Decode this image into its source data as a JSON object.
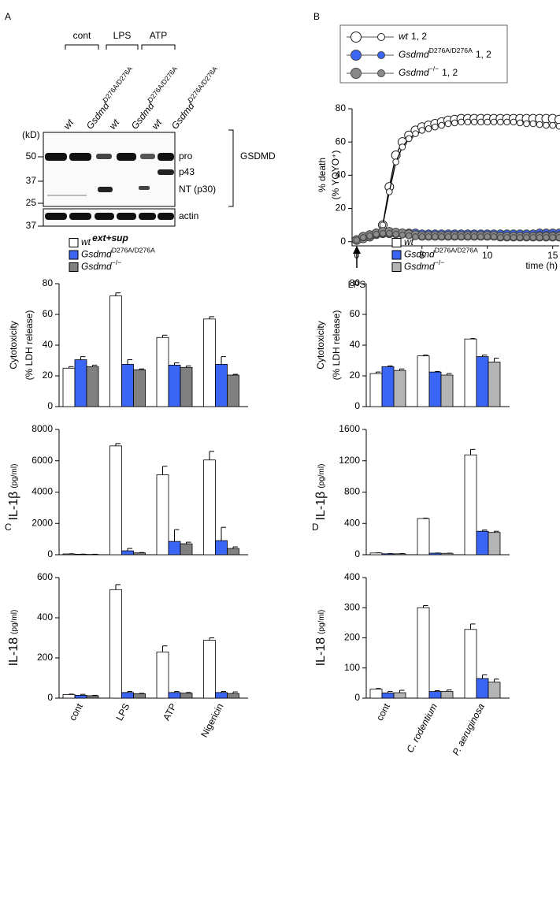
{
  "panel_labels": [
    "A",
    "B",
    "C",
    "D"
  ],
  "blot": {
    "groups": [
      "cont",
      "LPS",
      "ATP"
    ],
    "lanes": [
      {
        "name": "wt"
      },
      {
        "name": "Gsdmd",
        "sup": "D276A/D276A"
      },
      {
        "name": "wt"
      },
      {
        "name": "Gsdmd",
        "sup": "D276A/D276A"
      },
      {
        "name": "wt"
      },
      {
        "name": "Gsdmd",
        "sup": "D276A/D276A"
      }
    ],
    "unit": "(kD)",
    "markers": [
      50,
      37,
      25
    ],
    "loading_markers": [
      37
    ],
    "bands": [
      "pro",
      "p43",
      "NT (p30)"
    ],
    "protein": "GSDMD",
    "loading_control": "actin",
    "caption": "ext+sup"
  },
  "chart_data": [
    {
      "type": "line",
      "ylabel": "% death",
      "ylabel_unit": "(% YOYO⁺)",
      "xlabel": "time (h)",
      "annotation": "LPS",
      "xlim": [
        -0.35,
        15.5
      ],
      "xticks": [
        0,
        5,
        10,
        15
      ],
      "ylim": [
        -2.5,
        80
      ],
      "yticks": [
        0,
        20,
        40,
        60,
        80
      ],
      "x": [
        0,
        0.5,
        1,
        1.5,
        2,
        2.5,
        3,
        3.5,
        4,
        4.5,
        5,
        5.5,
        6,
        6.5,
        7,
        7.5,
        8,
        8.5,
        9,
        9.5,
        10,
        10.5,
        11,
        11.5,
        12,
        12.5,
        13,
        13.5,
        14,
        14.5,
        15,
        15.5
      ],
      "series": [
        {
          "name": "wt",
          "suffix": "1, 2",
          "color": "#ffffff",
          "replicates": [
            [
              1,
              2,
              3,
              5,
              10,
              33,
              52,
              60,
              64,
              67,
              69,
              70,
              71,
              72,
              73,
              73.5,
              74,
              74,
              74,
              74,
              74,
              74,
              74,
              74,
              74,
              74,
              74,
              74,
              74,
              74,
              74,
              73.5
            ],
            [
              1,
              2,
              3,
              5,
              10,
              30,
              48,
              57,
              62,
              65,
              67,
              68,
              69,
              70,
              71,
              71.5,
              72,
              72,
              72,
              72,
              72,
              72,
              72,
              72,
              72,
              71.5,
              71,
              71,
              70.5,
              70,
              70,
              69.5
            ]
          ]
        },
        {
          "name": "Gsdmd",
          "sup": "D276A/D276A",
          "suffix": "1, 2",
          "color": "#3b66f5",
          "replicates": [
            [
              1,
              3,
              4,
              4.5,
              5,
              5,
              5,
              5,
              5,
              5,
              4.5,
              4.5,
              4.5,
              4.5,
              4.5,
              4.5,
              4.5,
              4.5,
              4.5,
              4.5,
              4.5,
              4.5,
              4.5,
              4.5,
              4.5,
              4.5,
              4.5,
              4.5,
              5,
              5,
              5,
              5
            ],
            [
              1,
              2.5,
              3.5,
              4,
              4.5,
              4.5,
              4.5,
              4,
              4,
              4,
              4,
              4,
              4,
              4,
              4,
              4,
              4,
              4,
              4,
              4,
              4,
              4,
              4,
              4,
              4,
              4,
              4,
              4,
              4.5,
              4.5,
              4.5,
              4.5
            ]
          ]
        },
        {
          "name": "Gsdmd",
          "sup": "−/−",
          "suffix": "1, 2",
          "color": "#8a8a8a",
          "replicates": [
            [
              1,
              3,
              4,
              5,
              6,
              6,
              5.5,
              5,
              4.5,
              4,
              3.5,
              3.5,
              3.5,
              3.5,
              3.5,
              3.5,
              3.5,
              3.5,
              3.5,
              3.5,
              3.5,
              3.5,
              3,
              3,
              3,
              3,
              3,
              3,
              3,
              3,
              3,
              3
            ],
            [
              1,
              2.5,
              3.5,
              4.5,
              5,
              5,
              4.5,
              4,
              3.5,
              3,
              3,
              3,
              3,
              3,
              3,
              3,
              3,
              3,
              3,
              3,
              3,
              3,
              2.5,
              2.5,
              2.5,
              2.5,
              2.5,
              2.5,
              2.5,
              2.5,
              2.5,
              2.5
            ]
          ]
        }
      ]
    },
    {
      "type": "bar",
      "categories": [
        "cont",
        "LPS",
        "ATP",
        "Nigericin"
      ],
      "series": [
        {
          "name": "wt",
          "color": "#ffffff"
        },
        {
          "name": "Gsdmd",
          "sup": "D276A/D276A",
          "color": "#3b66f5"
        },
        {
          "name": "Gsdmd",
          "sup": "−/−",
          "color": "#808080"
        }
      ],
      "subplots": [
        {
          "ylabel": "Cytotoxicity",
          "ylabel_unit": "(% LDH release)",
          "ylim": [
            0,
            80
          ],
          "yticks": [
            0,
            20,
            40,
            60,
            80
          ],
          "values": [
            [
              25,
              72,
              45,
              57
            ],
            [
              30.5,
              27.5,
              27,
              27.5
            ],
            [
              26,
              24,
              25.5,
              20.5
            ]
          ],
          "errors": [
            [
              1,
              2,
              1.5,
              1.5
            ],
            [
              2,
              3,
              1.5,
              5
            ],
            [
              1,
              0.5,
              1,
              0.5
            ]
          ]
        },
        {
          "ylabel": "IL-1β",
          "ylabel_unit": "(pg/ml)",
          "ylim": [
            0,
            8000
          ],
          "yticks": [
            0,
            2000,
            4000,
            6000,
            8000
          ],
          "values": [
            [
              50,
              6950,
              5100,
              6050
            ],
            [
              30,
              250,
              850,
              900
            ],
            [
              20,
              120,
              700,
              400
            ]
          ],
          "errors": [
            [
              10,
              150,
              550,
              550
            ],
            [
              10,
              150,
              750,
              850
            ],
            [
              10,
              20,
              100,
              100
            ]
          ]
        },
        {
          "ylabel": "IL-18",
          "ylabel_unit": "(pg/ml)",
          "ylim": [
            0,
            600
          ],
          "yticks": [
            0,
            200,
            400,
            600
          ],
          "values": [
            [
              18,
              540,
              230,
              288
            ],
            [
              14,
              28,
              28,
              28
            ],
            [
              12,
              22,
              25,
              23
            ]
          ],
          "errors": [
            [
              2,
              25,
              30,
              12
            ],
            [
              5,
              5,
              5,
              5
            ],
            [
              2,
              2,
              3,
              8
            ]
          ]
        }
      ]
    },
    {
      "type": "bar",
      "categories": [
        "cont",
        "C. rodentium",
        "P. aeruginosa"
      ],
      "italic": [
        false,
        true,
        true
      ],
      "series": [
        {
          "name": "wt",
          "color": "#ffffff"
        },
        {
          "name": "Gsdmd",
          "sup": "D276A/D276A",
          "color": "#3b66f5"
        },
        {
          "name": "Gsdmd",
          "sup": "−/−",
          "color": "#b4b4b4"
        }
      ],
      "subplots": [
        {
          "ylabel": "Cytotoxicity",
          "ylabel_unit": "(% LDH release)",
          "ylim": [
            0,
            80
          ],
          "yticks": [
            0,
            20,
            40,
            60,
            80
          ],
          "values": [
            [
              21.5,
              33,
              44
            ],
            [
              26,
              22.5,
              32.5
            ],
            [
              23.5,
              20.5,
              29
            ]
          ],
          "errors": [
            [
              1,
              0.5,
              0.3
            ],
            [
              0.5,
              0.3,
              1
            ],
            [
              1,
              1,
              2.5
            ]
          ]
        },
        {
          "ylabel": "IL-1β",
          "ylabel_unit": "(pg/ml)",
          "ylim": [
            0,
            1600
          ],
          "yticks": [
            0,
            400,
            800,
            1200,
            1600
          ],
          "values": [
            [
              22,
              462,
              1275
            ],
            [
              12,
              20,
              300
            ],
            [
              12,
              18,
              285
            ]
          ],
          "errors": [
            [
              2,
              5,
              70
            ],
            [
              2,
              2,
              15
            ],
            [
              2,
              2,
              15
            ]
          ]
        },
        {
          "ylabel": "IL-18",
          "ylabel_unit": "(pg/ml)",
          "ylim": [
            0,
            400
          ],
          "yticks": [
            0,
            100,
            200,
            300,
            400
          ],
          "values": [
            [
              30,
              300,
              228
            ],
            [
              17,
              22,
              65
            ],
            [
              18,
              22,
              53
            ]
          ],
          "errors": [
            [
              2,
              7,
              18
            ],
            [
              5,
              3,
              12
            ],
            [
              8,
              5,
              10
            ]
          ]
        }
      ]
    }
  ]
}
